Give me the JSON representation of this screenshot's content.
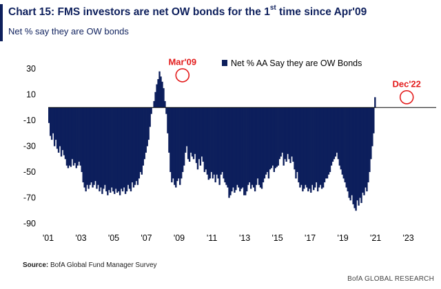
{
  "header": {
    "title_main": "Chart 15: FMS investors are net OW bonds for the 1",
    "title_sup": "st",
    "title_tail": " time since Apr'09",
    "subtitle": "Net % say they are OW bonds"
  },
  "footer": {
    "source_label": "Source:",
    "source_text": " BofA Global Fund Manager Survey",
    "brand": "BofA GLOBAL RESEARCH"
  },
  "colors": {
    "bar": "#0d1f5c",
    "annotation": "#e31b1b",
    "title": "#0d1f5c"
  },
  "chart_data": {
    "type": "bar",
    "title": "Chart 15: FMS investors are net OW bonds for the 1st time since Apr'09",
    "subtitle": "Net % say they are OW bonds",
    "legend": {
      "label": "Net % AA Say they are OW Bonds",
      "position": "top-right"
    },
    "ylim": [
      -90,
      30
    ],
    "yticks": [
      30,
      10,
      -10,
      -30,
      -50,
      -70,
      -90
    ],
    "xlim": [
      2001,
      2024.7
    ],
    "xticks": [
      "'01",
      "'03",
      "'05",
      "'07",
      "'09",
      "'11",
      "'13",
      "'15",
      "'17",
      "'19",
      "'21",
      "'23"
    ],
    "xtick_years": [
      2001,
      2003,
      2005,
      2007,
      2009,
      2011,
      2013,
      2015,
      2017,
      2019,
      2021,
      2023
    ],
    "grid": false,
    "annotations": [
      {
        "text": "Mar'09",
        "x": 2009.2,
        "y": 25
      },
      {
        "text": "Dec'22",
        "x": 2022.9,
        "y": 8
      }
    ],
    "series": [
      {
        "name": "Net % AA Say they are OW Bonds",
        "x_start": 2001.0,
        "x_step": 0.0833333,
        "values": [
          -12,
          -22,
          -25,
          -20,
          -30,
          -25,
          -32,
          -35,
          -30,
          -38,
          -33,
          -37,
          -40,
          -45,
          -47,
          -45,
          -46,
          -40,
          -45,
          -43,
          -47,
          -45,
          -42,
          -45,
          -50,
          -58,
          -62,
          -65,
          -60,
          -63,
          -60,
          -58,
          -62,
          -60,
          -57,
          -63,
          -60,
          -65,
          -62,
          -67,
          -63,
          -60,
          -65,
          -68,
          -64,
          -66,
          -62,
          -65,
          -67,
          -63,
          -66,
          -65,
          -68,
          -63,
          -65,
          -62,
          -67,
          -65,
          -60,
          -63,
          -65,
          -58,
          -62,
          -60,
          -57,
          -60,
          -55,
          -50,
          -52,
          -45,
          -40,
          -35,
          -30,
          -25,
          -15,
          -5,
          0,
          5,
          12,
          18,
          22,
          28,
          24,
          20,
          15,
          5,
          -5,
          -20,
          -35,
          -50,
          -58,
          -55,
          -60,
          -62,
          -57,
          -55,
          -60,
          -55,
          -50,
          -45,
          -35,
          -30,
          -40,
          -42,
          -35,
          -38,
          -40,
          -36,
          -43,
          -48,
          -40,
          -45,
          -38,
          -42,
          -50,
          -48,
          -52,
          -56,
          -55,
          -50,
          -55,
          -52,
          -58,
          -52,
          -55,
          -60,
          -52,
          -50,
          -55,
          -58,
          -60,
          -62,
          -70,
          -68,
          -65,
          -62,
          -66,
          -64,
          -60,
          -62,
          -65,
          -63,
          -62,
          -68,
          -68,
          -65,
          -60,
          -58,
          -63,
          -60,
          -62,
          -65,
          -60,
          -55,
          -60,
          -62,
          -63,
          -58,
          -55,
          -52,
          -50,
          -55,
          -48,
          -47,
          -45,
          -50,
          -47,
          -46,
          -45,
          -40,
          -38,
          -35,
          -45,
          -40,
          -42,
          -36,
          -40,
          -43,
          -38,
          -42,
          -48,
          -55,
          -50,
          -58,
          -62,
          -60,
          -65,
          -63,
          -60,
          -62,
          -65,
          -63,
          -66,
          -60,
          -64,
          -62,
          -58,
          -65,
          -62,
          -60,
          -63,
          -62,
          -58,
          -55,
          -55,
          -52,
          -50,
          -45,
          -42,
          -40,
          -38,
          -35,
          -40,
          -45,
          -48,
          -52,
          -55,
          -58,
          -62,
          -65,
          -70,
          -72,
          -68,
          -75,
          -78,
          -80,
          -72,
          -76,
          -70,
          -74,
          -66,
          -68,
          -62,
          -65,
          -58,
          -50,
          -40,
          -30,
          -20,
          8
        ]
      }
    ]
  }
}
